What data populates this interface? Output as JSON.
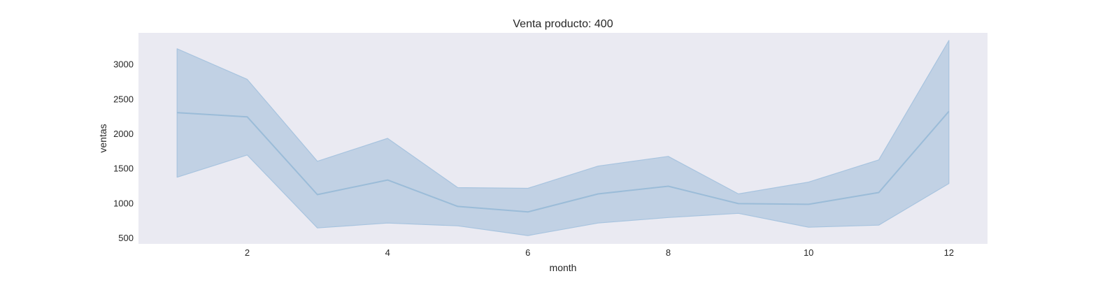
{
  "chart_data": {
    "type": "line",
    "title": "Venta producto: 400",
    "xlabel": "month",
    "ylabel": "ventas",
    "xlim": [
      0.45,
      12.55
    ],
    "ylim": [
      410,
      3450
    ],
    "xticks": [
      2,
      4,
      6,
      8,
      10,
      12
    ],
    "yticks": [
      500,
      1000,
      1500,
      2000,
      2500,
      3000
    ],
    "grid": false,
    "x": [
      1,
      2,
      3,
      4,
      5,
      6,
      7,
      8,
      9,
      10,
      11,
      12
    ],
    "series": [
      {
        "values": [
          2300,
          2240,
          1120,
          1330,
          950,
          870,
          1130,
          1240,
          990,
          980,
          1150,
          2320
        ],
        "ci_upper": [
          3220,
          2780,
          1600,
          1930,
          1220,
          1210,
          1530,
          1670,
          1130,
          1300,
          1620,
          3340
        ],
        "ci_lower": [
          1370,
          1690,
          640,
          710,
          670,
          530,
          710,
          790,
          850,
          650,
          680,
          1280
        ]
      }
    ],
    "colors": {
      "plot_background": "#eaeaf2",
      "line": "#9bbcd8",
      "band_fill": "#9ebcd8",
      "band_stroke": "#a8c4df"
    }
  }
}
